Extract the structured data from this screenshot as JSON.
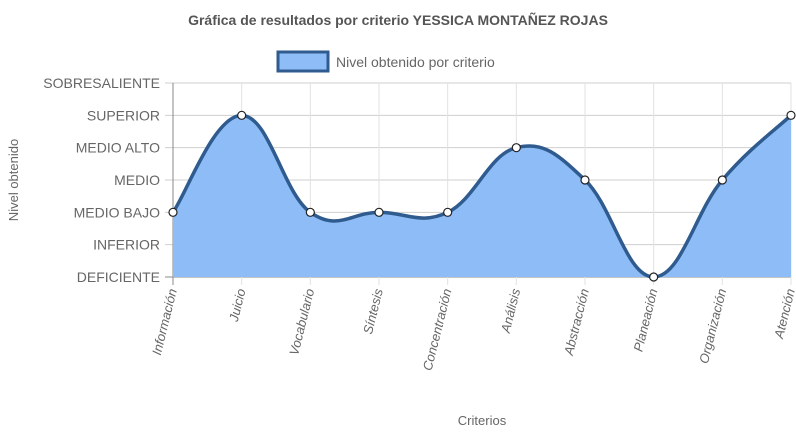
{
  "chart_data": {
    "type": "area",
    "title": "Gráfica de resultados por criterio YESSICA MONTAÑEZ ROJAS",
    "xlabel": "Criterios",
    "ylabel": "Nivel obtenido",
    "levels": [
      "DEFICIENTE",
      "INFERIOR",
      "MEDIO BAJO",
      "MEDIO",
      "MEDIO ALTO",
      "SUPERIOR",
      "SOBRESALIENTE"
    ],
    "categories": [
      "Información",
      "Juicio",
      "Vocabulario",
      "Síntesis",
      "Concentración",
      "Análisis",
      "Abstracción",
      "Planeación",
      "Organización",
      "Atención"
    ],
    "series": [
      {
        "name": "Nivel obtenido por criterio",
        "values": [
          2,
          5,
          2,
          2,
          2,
          4,
          3,
          0,
          3,
          5
        ],
        "values_text": [
          "MEDIO BAJO",
          "SUPERIOR",
          "MEDIO BAJO",
          "MEDIO BAJO",
          "MEDIO BAJO",
          "MEDIO ALTO",
          "MEDIO",
          "DEFICIENTE",
          "MEDIO",
          "SUPERIOR"
        ]
      }
    ],
    "ylim": [
      0,
      6
    ],
    "grid": true,
    "legend": "top-center",
    "colors": {
      "fill": "#8dbcf7",
      "line": "#2f5b8f",
      "grid": "#e2e2e2",
      "axis": "#888888"
    }
  }
}
